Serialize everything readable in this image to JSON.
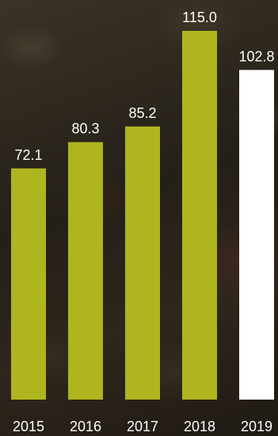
{
  "chart_data": {
    "type": "bar",
    "categories": [
      "2015",
      "2016",
      "2017",
      "2018",
      "2019"
    ],
    "values": [
      72.1,
      80.3,
      85.2,
      115.0,
      102.8
    ],
    "value_labels": [
      "72.1",
      "80.3",
      "85.2",
      "115.0",
      "102.8"
    ],
    "ylim": [
      0,
      140
    ],
    "grid": false,
    "legend": "none",
    "colors": {
      "bar": "#aeb51e",
      "highlight_bar": "#ffffff",
      "text": "#ffffff"
    },
    "highlight_index": 4
  }
}
